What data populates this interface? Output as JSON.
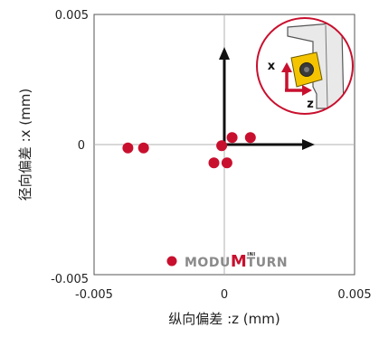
{
  "chart_data": {
    "type": "scatter",
    "xlabel": "纵向偏差 :z (mm)",
    "ylabel": "径向偏差 :x (mm)",
    "xlim": [
      -0.005,
      0.005
    ],
    "ylim": [
      -0.005,
      0.005
    ],
    "x_ticks": [
      "-0.005",
      "0",
      "0.005"
    ],
    "y_ticks": [
      "0.005",
      "0",
      "-0.005"
    ],
    "grid": false,
    "crosshair_at_zero": true,
    "marker_color": "#c8102e",
    "series": [
      {
        "x": [
          -0.0037,
          -0.0031,
          -0.0001,
          0.0003,
          0.001,
          -0.0004,
          0.0001
        ],
        "y": [
          -0.00013,
          -0.00013,
          -4e-05,
          0.00027,
          0.00027,
          -0.0007,
          -0.0007
        ]
      }
    ],
    "inset": {
      "x_axis_letter": "x",
      "z_axis_letter": "z",
      "border_color": "#c8102e",
      "tool_color": "#f5c400"
    },
    "brand": {
      "name_part1": "MODU",
      "name_accent": "M",
      "name_sup": "INI",
      "name_part2": "TURN",
      "accent_color": "#c8102e",
      "text_color": "#8a8a8a"
    }
  }
}
